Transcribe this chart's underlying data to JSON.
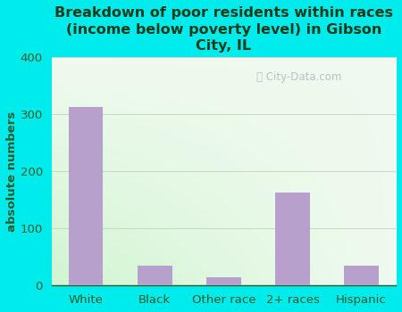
{
  "categories": [
    "White",
    "Black",
    "Other race",
    "2+ races",
    "Hispanic"
  ],
  "values": [
    313,
    35,
    15,
    163,
    35
  ],
  "bar_color": "#b8a0cc",
  "title": "Breakdown of poor residents within races\n(income below poverty level) in Gibson\nCity, IL",
  "ylabel": "absolute numbers",
  "ylim": [
    0,
    400
  ],
  "yticks": [
    0,
    100,
    200,
    300,
    400
  ],
  "background_color": "#00ecec",
  "title_color": "#1a3a1a",
  "axis_color": "#2a5a2a",
  "tick_color": "#2a5a2a",
  "watermark": "City-Data.com",
  "title_fontsize": 11.5,
  "label_fontsize": 9.5,
  "ylabel_fontsize": 9.5,
  "grid_color": "#c8d8c0",
  "plot_bg_corner_tl": "#e8f8e0",
  "plot_bg_corner_tr": "#f8fef8",
  "plot_bg_corner_bl": "#d0f0d0",
  "plot_bg_corner_br": "#f0faf0"
}
